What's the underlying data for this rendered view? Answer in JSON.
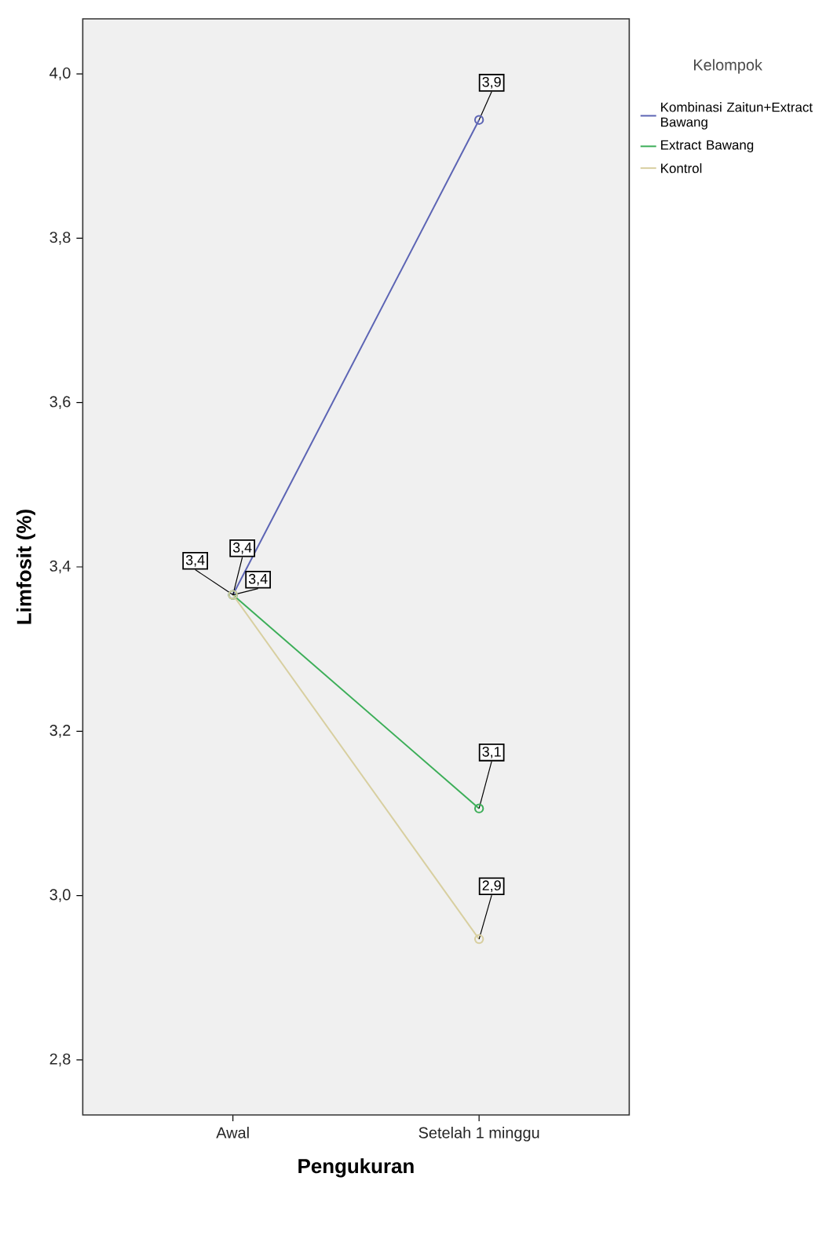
{
  "chart_data": {
    "type": "line",
    "xlabel": "Pengukuran",
    "ylabel": "Limfosit (%)",
    "legend_title": "Kelompok",
    "categories": [
      "Awal",
      "Setelah 1 minggu"
    ],
    "series": [
      {
        "name": "Kombinasi Zaitun+Extract Bawang",
        "color": "#5c64b4",
        "values": [
          3.366,
          3.944
        ],
        "value_labels": [
          "3,4",
          "3,9"
        ]
      },
      {
        "name": "Extract Bawang",
        "color": "#3cae58",
        "values": [
          3.366,
          3.106
        ],
        "value_labels": [
          "3,4",
          "3,1"
        ]
      },
      {
        "name": "Kontrol",
        "color": "#d8cfa0",
        "values": [
          3.366,
          2.947
        ],
        "value_labels": [
          "3,4",
          "2,9"
        ]
      }
    ],
    "ylim": [
      2.733,
      4.067
    ],
    "yticks": [
      {
        "value": 2.8,
        "label": "2,8"
      },
      {
        "value": 3.0,
        "label": "3,0"
      },
      {
        "value": 3.2,
        "label": "3,2"
      },
      {
        "value": 3.4,
        "label": "3,4"
      },
      {
        "value": 3.6,
        "label": "3,6"
      },
      {
        "value": 3.8,
        "label": "3,8"
      },
      {
        "value": 4.0,
        "label": "4,0"
      }
    ],
    "grid": false,
    "legend": "top right",
    "marker": "circle",
    "line_style": "solid"
  }
}
